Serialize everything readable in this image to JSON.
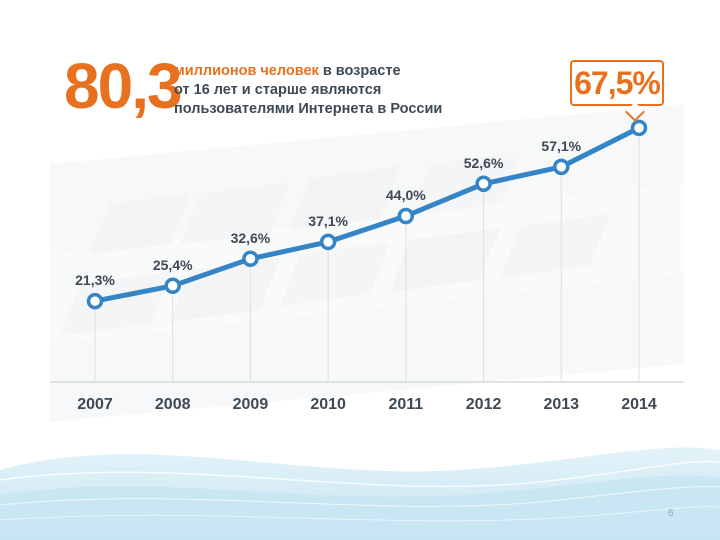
{
  "slide": {
    "page_number": "6"
  },
  "headline": {
    "number": "80,3",
    "line1_orange": "миллионов человек",
    "line1_rest": " в возрасте",
    "line2": "от 16 лет и старше являются",
    "line3": "пользователями Интернета в России"
  },
  "callout": {
    "text": "67,5%"
  },
  "colors": {
    "line": "#3484c6",
    "accent": "#e8711f",
    "text_dark": "#3d4a55"
  },
  "chart_data": {
    "type": "line",
    "categories": [
      "2007",
      "2008",
      "2009",
      "2010",
      "2011",
      "2012",
      "2013",
      "2014"
    ],
    "values": [
      21.3,
      25.4,
      32.6,
      37.1,
      44.0,
      52.6,
      57.1,
      67.5
    ],
    "point_labels": [
      "21,3%",
      "25,4%",
      "32,6%",
      "37,1%",
      "44,0%",
      "52,6%",
      "57,1%",
      ""
    ],
    "unit": "%",
    "ylim": [
      0,
      80
    ],
    "grid": false,
    "legend": "none"
  }
}
